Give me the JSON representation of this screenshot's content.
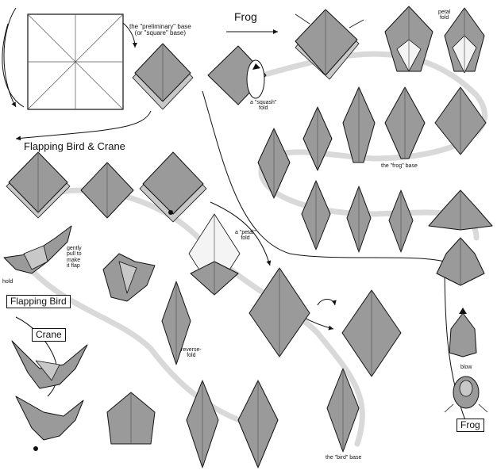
{
  "headings": {
    "frog": "Frog",
    "flapping_bird_and_crane": "Flapping Bird & Crane"
  },
  "labels": {
    "preliminary_base_line1": "the \"preliminary\" base",
    "preliminary_base_line2": "(or \"square\" base)",
    "squash_line1": "a \"squash\"",
    "squash_line2": "fold",
    "petal_fold_top_line1": "petal",
    "petal_fold_top_line2": "fold",
    "frog_base": "the \"frog\" base",
    "petal_fold_mid_line1": "a \"petal\"",
    "petal_fold_mid_line2": "fold",
    "gently_line1": "gently",
    "gently_line2": "pull to",
    "gently_line3": "make",
    "gently_line4": "it flap",
    "hold": "hold",
    "reverse_line1": "reverse-",
    "reverse_line2": "fold",
    "bird_base": "the \"bird\" base",
    "blow": "blow"
  },
  "models": {
    "flapping_bird": "Flapping Bird",
    "crane": "Crane",
    "frog": "Frog"
  },
  "colors": {
    "paper_gray": "#9a9a9a",
    "paper_light": "#c8c8c8",
    "path_gray": "#d9d9d9",
    "ink": "#111111"
  }
}
